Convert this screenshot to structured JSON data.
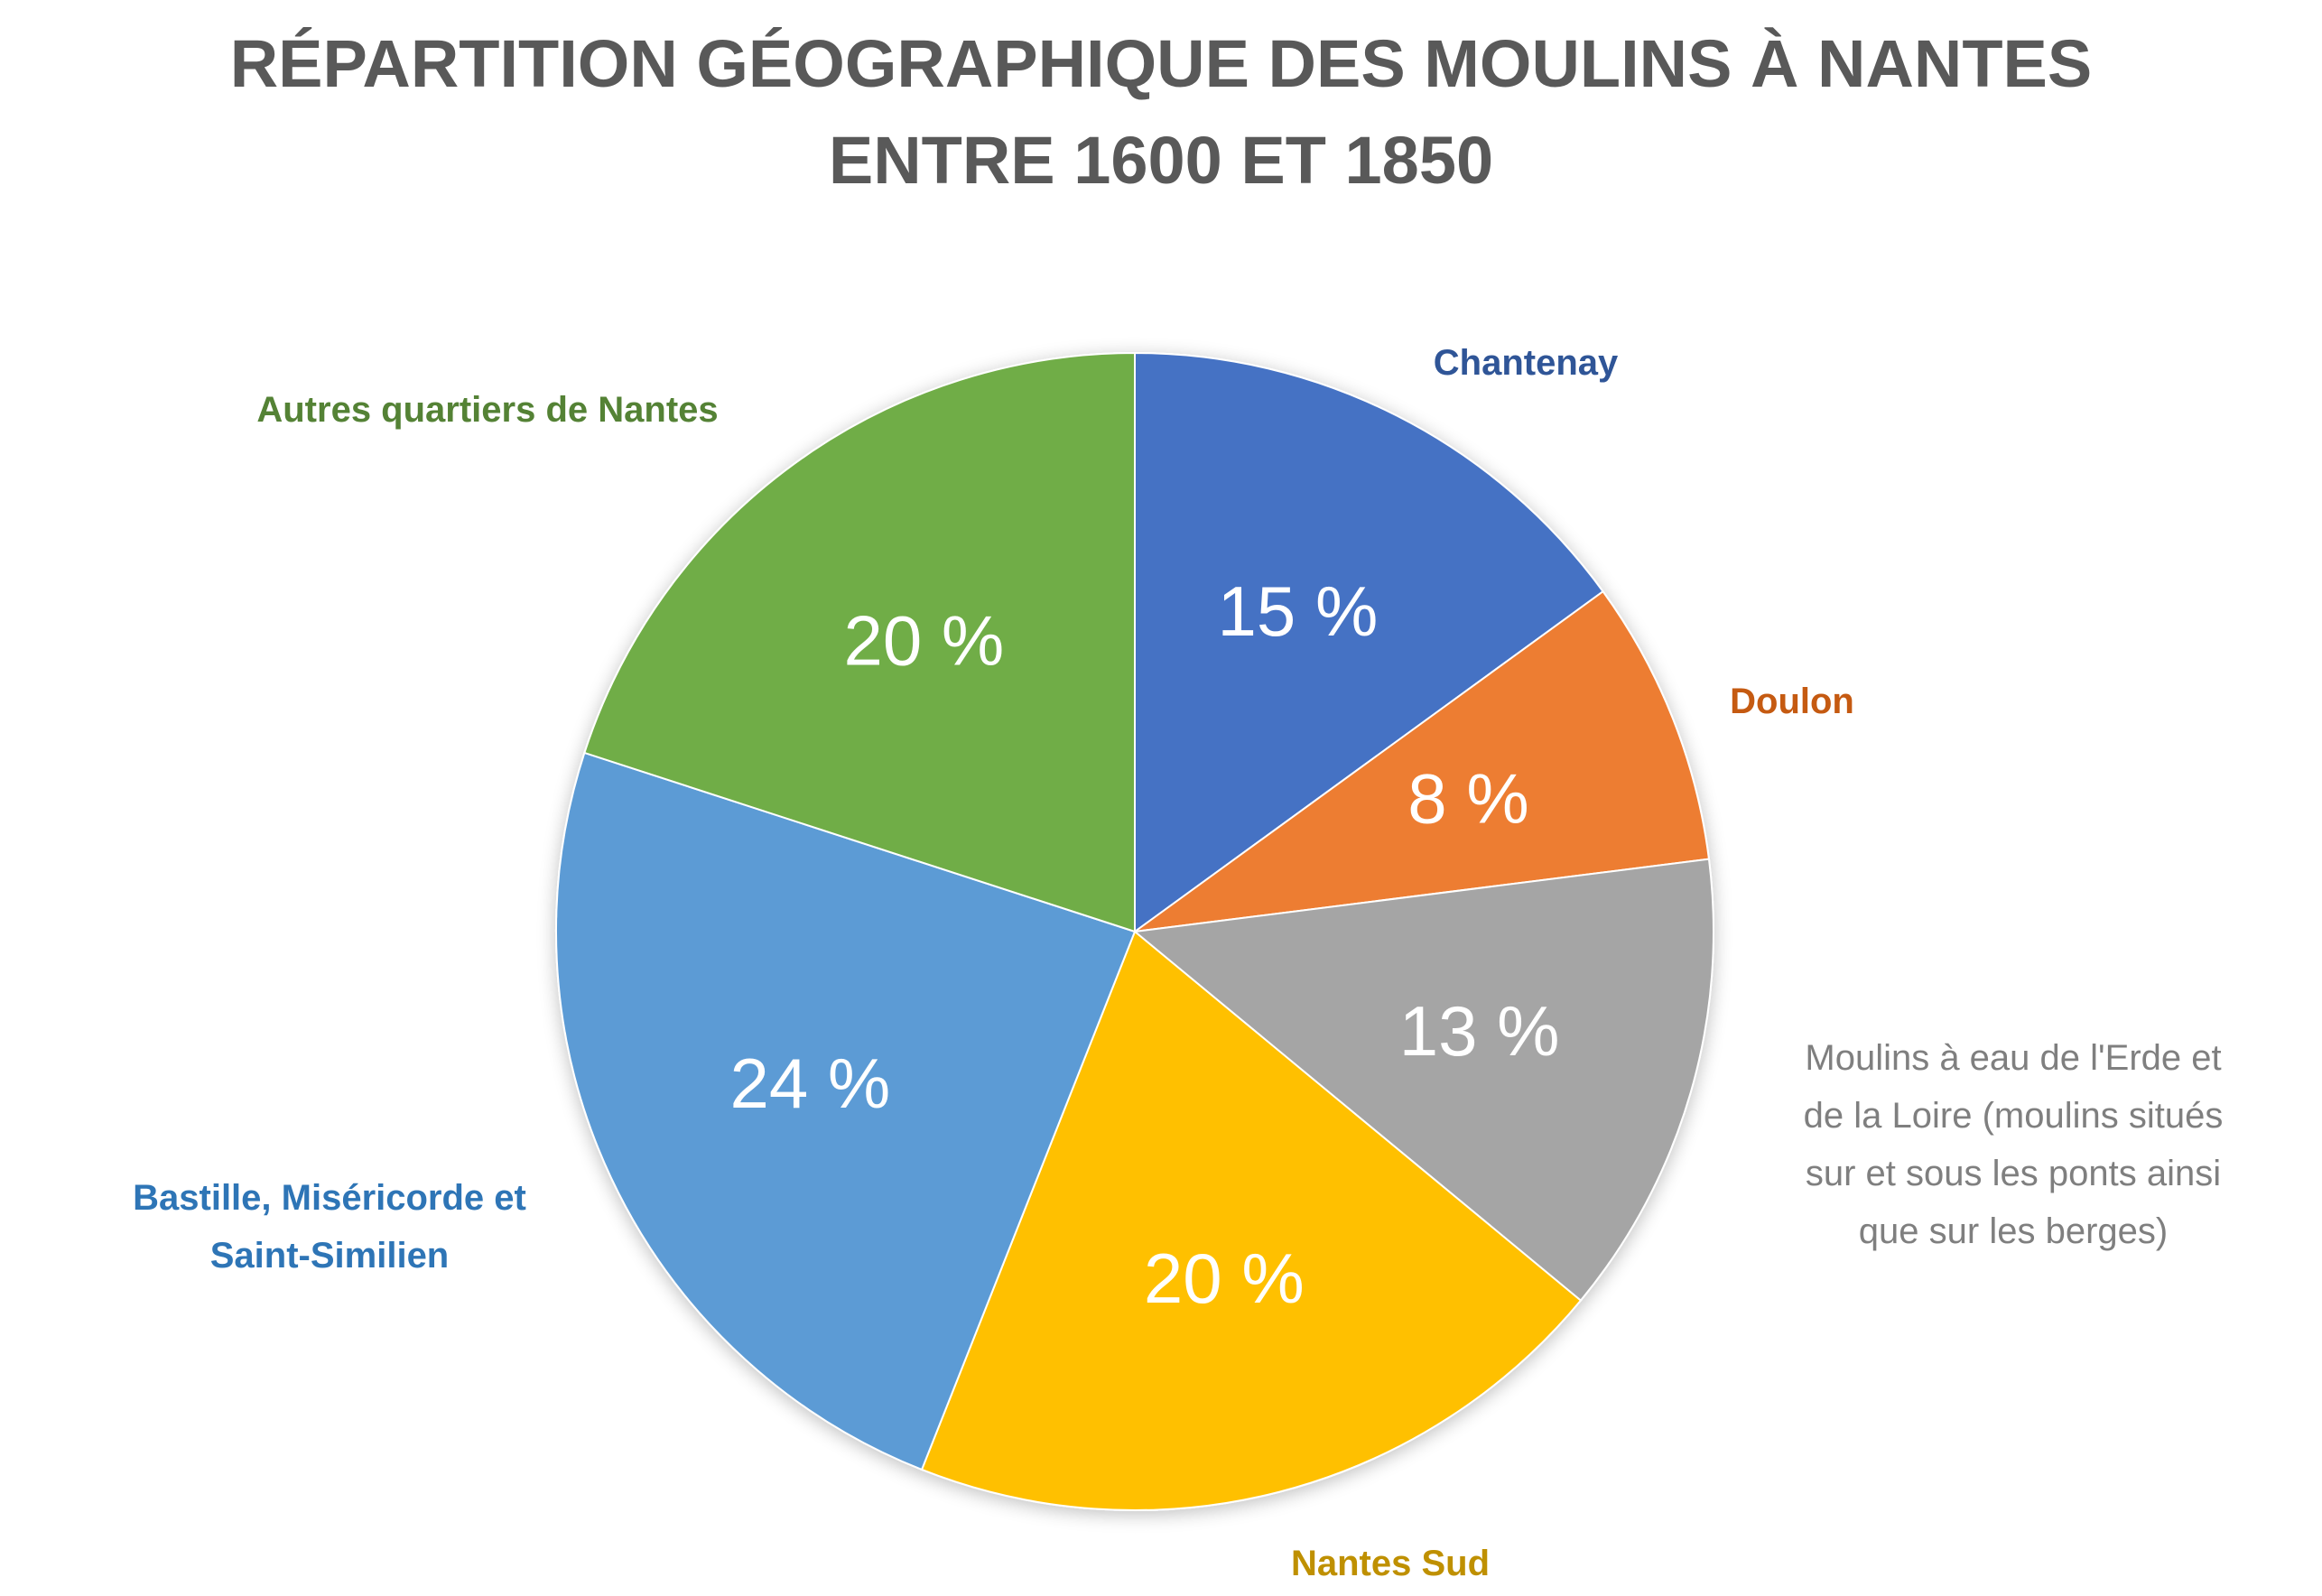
{
  "chart_data": {
    "type": "pie",
    "title": "RÉPARTITION GÉOGRAPHIQUE DES MOULINS À NANTES ENTRE 1600 ET 1850",
    "title_lines": [
      "RÉPARTITION GÉOGRAPHIQUE DES MOULINS À NANTES",
      "ENTRE 1600 ET 1850"
    ],
    "unit": "%",
    "categories": [
      "Chantenay",
      "Doulon",
      "Moulins à eau de l'Erde et de la Loire (moulins situés sur et sous les ponts ainsi que sur les berges)",
      "Nantes Sud",
      "Bastille, Miséricorde et Saint-Similien",
      "Autres quartiers de Nantes"
    ],
    "values": [
      15,
      8,
      13,
      20,
      24,
      20
    ],
    "data_labels": [
      "15 %",
      "8 %",
      "13 %",
      "20 %",
      "24 %",
      "20 %"
    ],
    "colors": [
      "#4472c4",
      "#ed7d31",
      "#a5a5a5",
      "#ffc000",
      "#5b9bd5",
      "#70ad47"
    ],
    "start_angle_deg": 0,
    "direction": "clockwise",
    "legend": "none (labels placed outside slices)"
  },
  "labels": {
    "chantenay": "Chantenay",
    "doulon": "Doulon",
    "moulins_lines": [
      "Moulins à eau de l'Erde et",
      "de la Loire (moulins situés",
      "sur et sous les ponts ainsi",
      "que sur les berges)"
    ],
    "nantes_sud": "Nantes Sud",
    "bastille_lines": [
      "Bastille, Miséricorde et",
      "Saint-Similien"
    ],
    "autres": "Autres quartiers de Nantes"
  },
  "label_colors": {
    "chantenay": "#2f5597",
    "doulon": "#c55a11",
    "moulins": "#7f7f7f",
    "nantes_sud": "#bf9000",
    "bastille": "#2e75b6",
    "autres": "#548235"
  }
}
